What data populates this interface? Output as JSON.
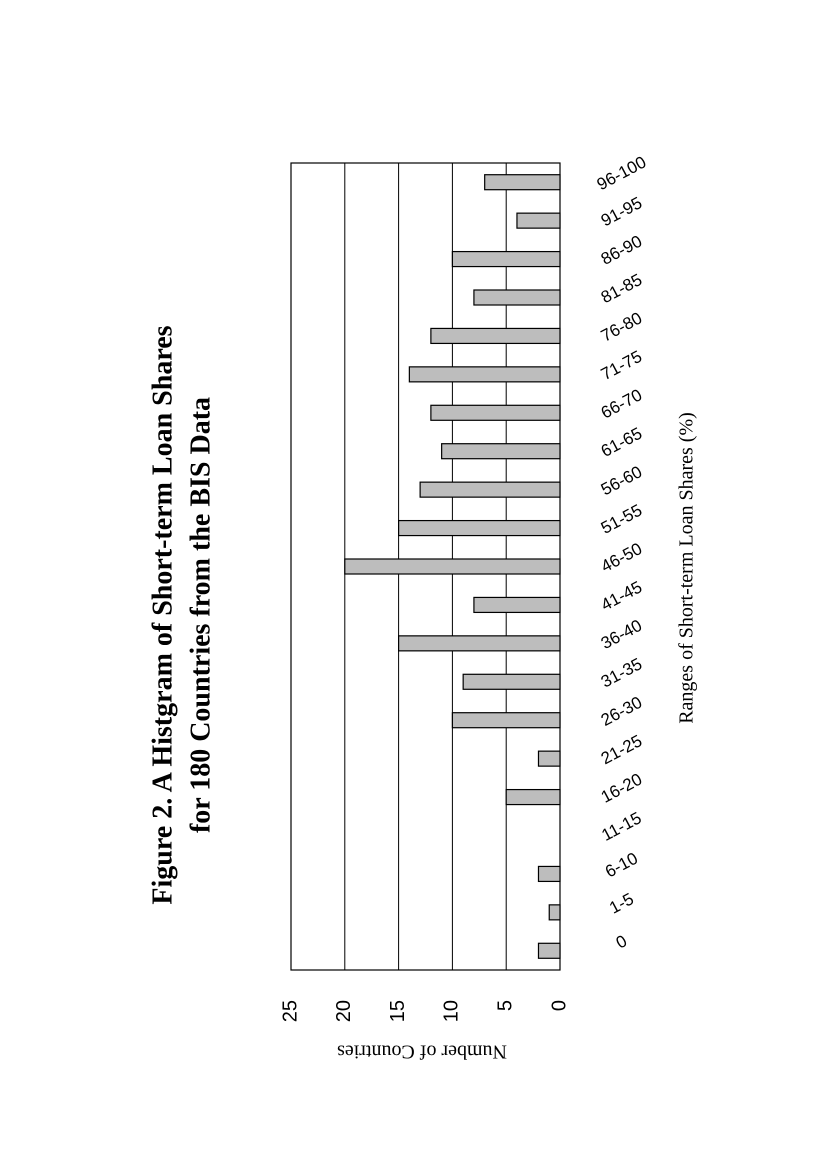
{
  "chart_data": {
    "type": "bar",
    "title": "Figure 2.  A Histgram of Short-term Loan Shares",
    "subtitle": "for 180 Countries from the BIS Data",
    "x_label": "Ranges of Short-term Loan Shares (%)",
    "y_label": "Number of Countries",
    "categories": [
      "0",
      "1-5",
      "6-10",
      "11-15",
      "16-20",
      "21-25",
      "26-30",
      "31-35",
      "36-40",
      "41-45",
      "46-50",
      "51-55",
      "56-60",
      "61-65",
      "66-70",
      "71-75",
      "76-80",
      "81-85",
      "86-90",
      "91-95",
      "96-100"
    ],
    "values": [
      2,
      1,
      2,
      0,
      5,
      2,
      10,
      9,
      15,
      8,
      20,
      15,
      13,
      11,
      12,
      14,
      12,
      8,
      10,
      4,
      7
    ],
    "color": "#bdbdbd",
    "ylim": [
      0,
      25
    ],
    "yticks": [
      0,
      5,
      10,
      15,
      20,
      25
    ],
    "grid": true
  }
}
